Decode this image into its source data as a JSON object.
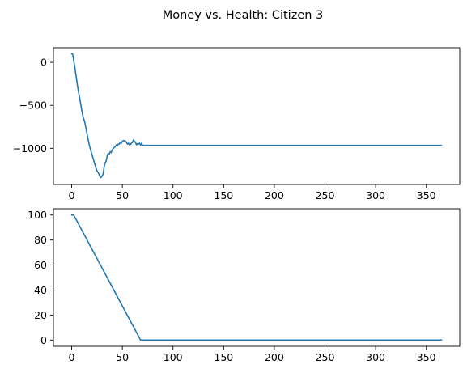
{
  "figure": {
    "title": "Money vs. Health: Citizen 3"
  },
  "chart_data": [
    {
      "type": "line",
      "title": "",
      "xlabel": "",
      "ylabel": "",
      "xlim": [
        -18,
        383
      ],
      "ylim": [
        -1420,
        170
      ],
      "xticks": [
        0,
        50,
        100,
        150,
        200,
        250,
        300,
        350
      ],
      "yticks": [
        -1000,
        -500,
        0
      ],
      "grid": false,
      "series": [
        {
          "color": "#1f77b4",
          "x": [
            0,
            1,
            2,
            3,
            4,
            5,
            6,
            7,
            8,
            9,
            10,
            11,
            12,
            13,
            14,
            15,
            16,
            17,
            18,
            19,
            20,
            21,
            22,
            23,
            24,
            25,
            26,
            27,
            28,
            29,
            30,
            31,
            32,
            33,
            34,
            35,
            36,
            37,
            38,
            39,
            40,
            41,
            42,
            43,
            44,
            45,
            46,
            47,
            48,
            49,
            50,
            51,
            52,
            53,
            54,
            55,
            56,
            57,
            58,
            59,
            60,
            61,
            62,
            63,
            64,
            65,
            66,
            67,
            68,
            69,
            70,
            365
          ],
          "values": [
            100,
            95,
            20,
            -50,
            -130,
            -210,
            -290,
            -360,
            -420,
            -490,
            -560,
            -620,
            -660,
            -700,
            -760,
            -820,
            -880,
            -940,
            -990,
            -1030,
            -1070,
            -1110,
            -1150,
            -1190,
            -1230,
            -1260,
            -1280,
            -1300,
            -1330,
            -1340,
            -1320,
            -1300,
            -1220,
            -1170,
            -1150,
            -1090,
            -1060,
            -1070,
            -1040,
            -1050,
            -1020,
            -1000,
            -990,
            -980,
            -960,
            -970,
            -950,
            -950,
            -930,
            -940,
            -920,
            -910,
            -910,
            -915,
            -930,
            -950,
            -940,
            -960,
            -955,
            -940,
            -930,
            -900,
            -920,
            -930,
            -960,
            -945,
            -950,
            -940,
            -965,
            -940,
            -965,
            -965
          ]
        }
      ]
    },
    {
      "type": "line",
      "title": "",
      "xlabel": "",
      "ylabel": "",
      "xlim": [
        -18,
        383
      ],
      "ylim": [
        -5,
        105
      ],
      "xticks": [
        0,
        50,
        100,
        150,
        200,
        250,
        300,
        350
      ],
      "yticks": [
        0,
        20,
        40,
        60,
        80,
        100
      ],
      "grid": false,
      "series": [
        {
          "color": "#1f77b4",
          "x": [
            0,
            2,
            68,
            69,
            365
          ],
          "values": [
            100,
            100,
            0,
            0,
            0
          ]
        }
      ]
    }
  ]
}
